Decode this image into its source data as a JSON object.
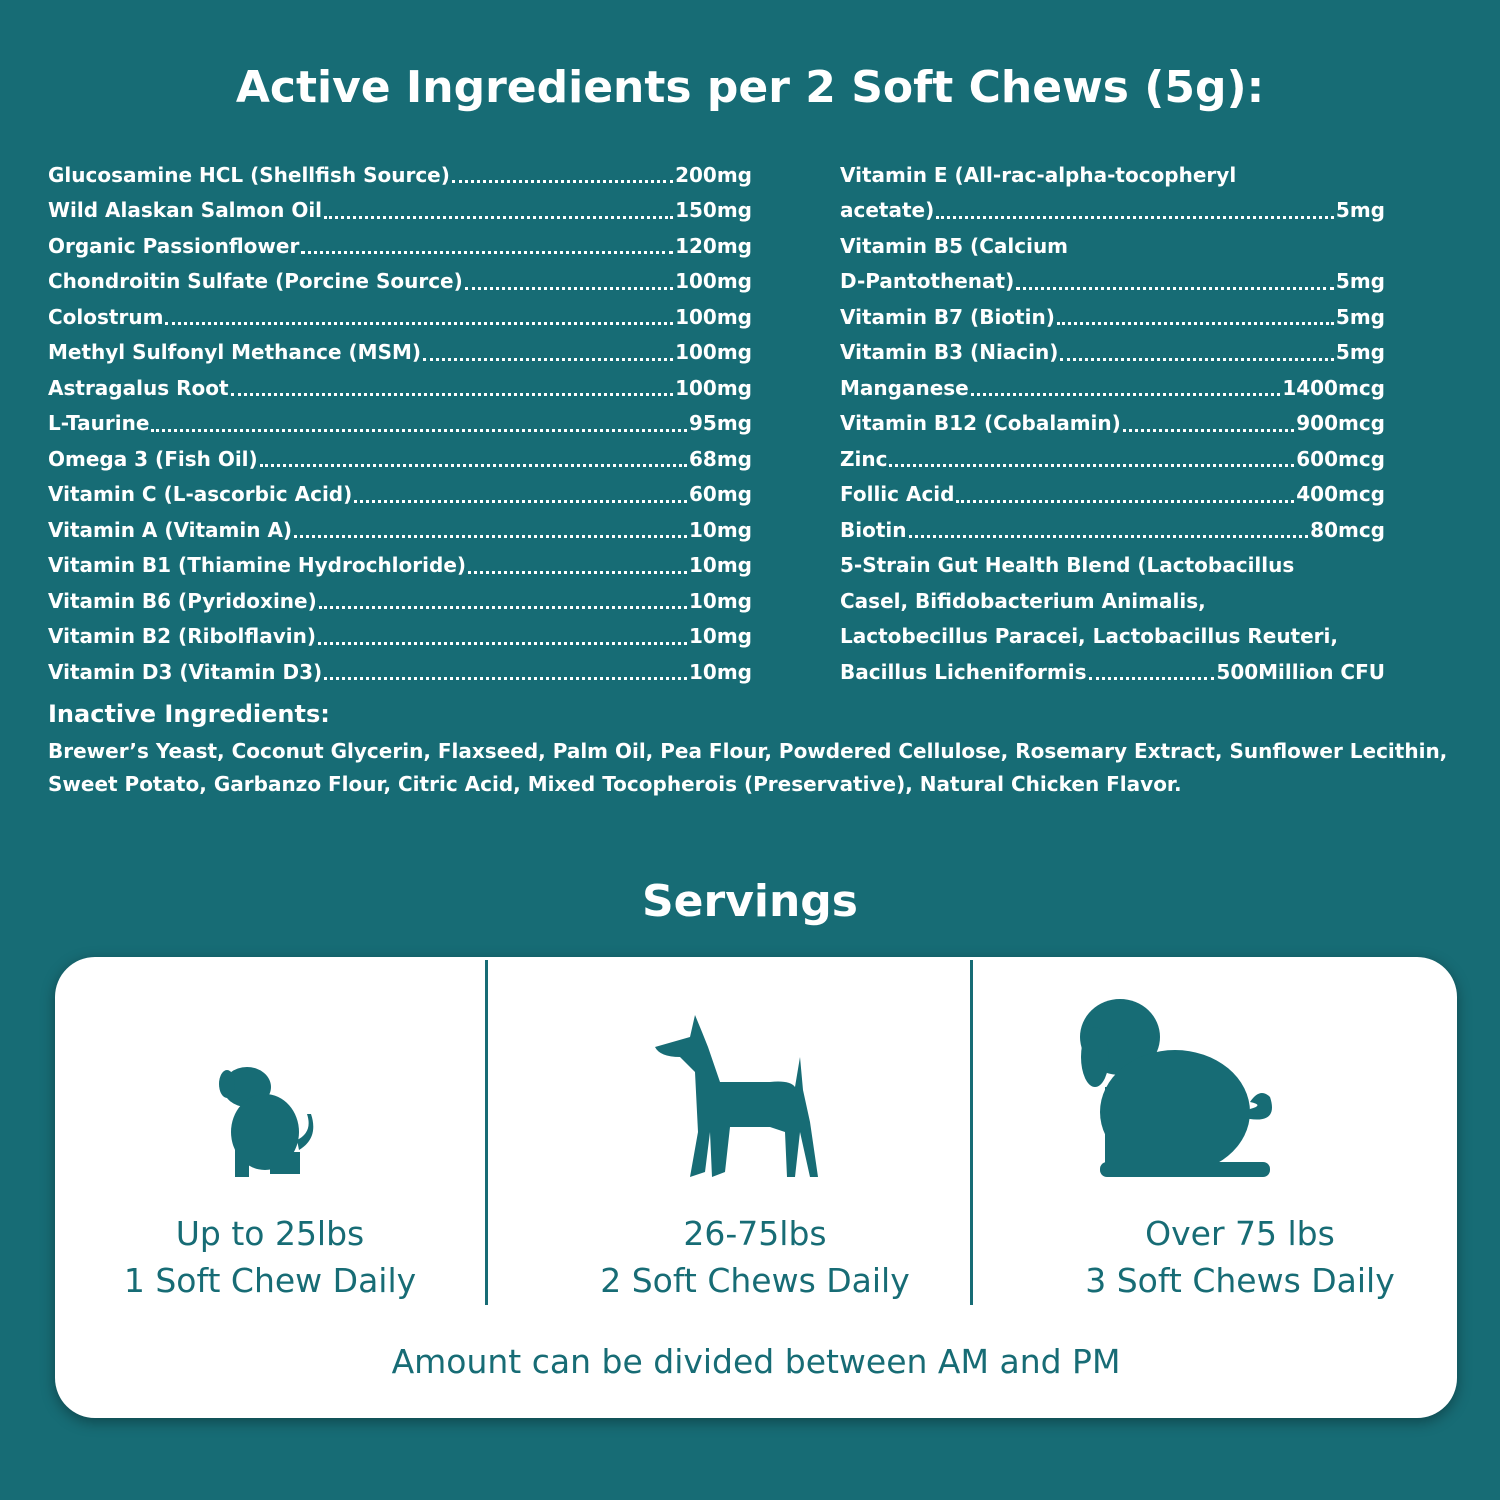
{
  "title": "Active Ingredients per 2 Soft Chews (5g):",
  "active_left": [
    {
      "name": "Glucosamine HCL (Shellfish Source)",
      "amount": "200mg"
    },
    {
      "name": "Wild Alaskan Salmon Oil",
      "amount": "150mg"
    },
    {
      "name": "Organic Passionflower",
      "amount": "120mg"
    },
    {
      "name": "Chondroitin Sulfate (Porcine Source)",
      "amount": "100mg"
    },
    {
      "name": "Colostrum",
      "amount": "100mg"
    },
    {
      "name": "Methyl Sulfonyl Methance (MSM)",
      "amount": "100mg"
    },
    {
      "name": "Astragalus Root",
      "amount": "100mg"
    },
    {
      "name": "L-Taurine",
      "amount": "95mg"
    },
    {
      "name": "Omega 3 (Fish Oil)",
      "amount": "68mg"
    },
    {
      "name": "Vitamin C (L-ascorbic Acid)",
      "amount": "60mg"
    },
    {
      "name": "Vitamin A (Vitamin A)",
      "amount": "10mg"
    },
    {
      "name": "Vitamin B1 (Thiamine Hydrochloride)",
      "amount": "10mg"
    },
    {
      "name": "Vitamin B6 (Pyridoxine)",
      "amount": "10mg"
    },
    {
      "name": "Vitamin B2 (Ribolflavin)",
      "amount": "10mg"
    },
    {
      "name": "Vitamin D3 (Vitamin D3)",
      "amount": "10mg"
    }
  ],
  "active_right": [
    {
      "lines": [
        "Vitamin E (All-rac-alpha-tocopheryl",
        "acetate)"
      ],
      "amount": "5mg"
    },
    {
      "lines": [
        "Vitamin B5 (Calcium",
        "D-Pantothenat)"
      ],
      "amount": "5mg"
    },
    {
      "lines": [
        "Vitamin B7 (Biotin)"
      ],
      "amount": "5mg"
    },
    {
      "lines": [
        "Vitamin B3 (Niacin)"
      ],
      "amount": "5mg"
    },
    {
      "lines": [
        "Manganese"
      ],
      "amount": "1400mcg"
    },
    {
      "lines": [
        "Vitamin B12 (Cobalamin)"
      ],
      "amount": "900mcg"
    },
    {
      "lines": [
        "Zinc"
      ],
      "amount": "600mcg"
    },
    {
      "lines": [
        "Follic Acid"
      ],
      "amount": "400mcg"
    },
    {
      "lines": [
        "Biotin"
      ],
      "amount": "80mcg"
    },
    {
      "lines": [
        "5-Strain Gut Health Blend (Lactobacillus",
        "Casel, Bifidobacterium Animalis,",
        "Lactobecillus Paracei, Lactobacillus Reuteri,",
        "Bacillus Licheniformis"
      ],
      "amount": "500Million CFU"
    }
  ],
  "inactive": {
    "heading": "Inactive Ingredients:",
    "text": "Brewer’s Yeast, Coconut Glycerin, Flaxseed, Palm Oil, Pea Flour, Powdered Cellulose, Rosemary Extract, Sunflower Lecithin, Sweet Potato, Garbanzo Flour, Citric Acid, Mixed Tocopherois (Preservative), Natural Chicken Flavor."
  },
  "servings": {
    "title": "Servings",
    "items": [
      {
        "weight": "Up to 25lbs",
        "dose": "1 Soft Chew Daily"
      },
      {
        "weight": "26-75lbs",
        "dose": "2 Soft Chews Daily"
      },
      {
        "weight": "Over 75 lbs",
        "dose": "3 Soft Chews Daily"
      }
    ],
    "note": "Amount can be divided between AM and PM"
  }
}
